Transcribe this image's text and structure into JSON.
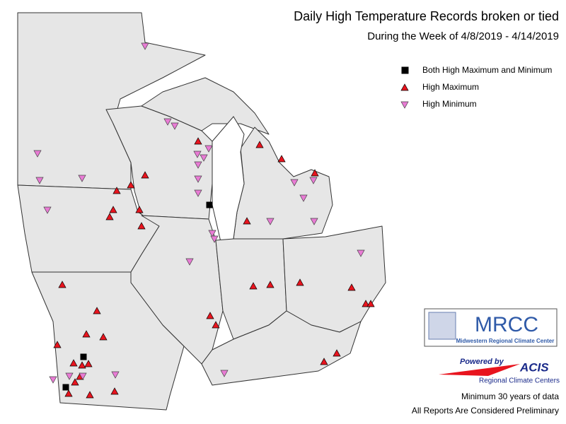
{
  "header": {
    "title": "Daily High Temperature Records broken or tied",
    "subtitle": "During the Week of 4/8/2019 - 4/14/2019"
  },
  "legend": {
    "items": [
      "Both High Maximum and Minimum",
      "High Maximum",
      "High Minimum"
    ]
  },
  "logo": {
    "name": "MRCC",
    "full_name": "Midwestern Regional Climate Center",
    "powered_by": "Powered by",
    "acis": "ACIS",
    "acis_full": "Regional Climate Centers"
  },
  "notes": [
    "Minimum 30 years of data",
    "All Reports Are Considered Preliminary"
  ]
}
